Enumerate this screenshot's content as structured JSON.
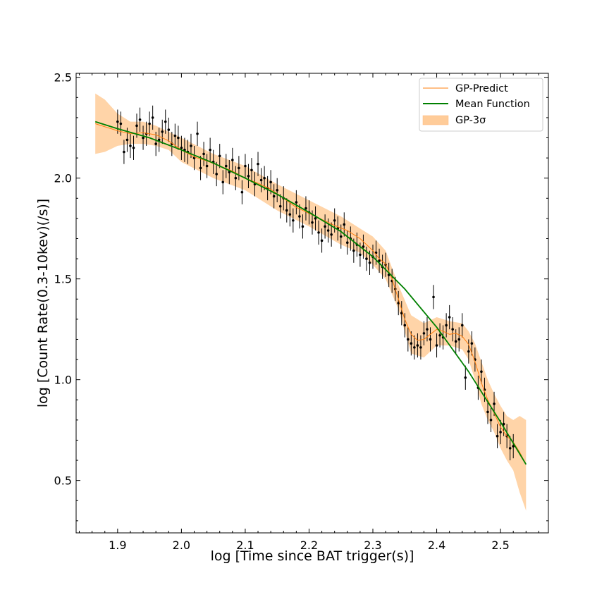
{
  "chart_data": {
    "type": "scatter",
    "title": "",
    "xlabel": "log [Time since BAT trigger(s)]",
    "ylabel": "log [Count Rate(0.3-10kev)(/s)]",
    "xlim": [
      1.835,
      2.575
    ],
    "ylim": [
      0.24,
      2.52
    ],
    "xticks": [
      1.9,
      2.0,
      2.1,
      2.2,
      2.3,
      2.4,
      2.5
    ],
    "xtick_labels": [
      "1.9",
      "2.0",
      "2.1",
      "2.2",
      "2.3",
      "2.4",
      "2.5"
    ],
    "yticks": [
      0.5,
      1.0,
      1.5,
      2.0,
      2.5
    ],
    "ytick_labels": [
      "0.5",
      "1.0",
      "1.5",
      "2.0",
      "2.5"
    ],
    "grid": false,
    "legend_position": "top-right",
    "legend": [
      {
        "label": "GP-Predict",
        "kind": "line",
        "color": "#ff7f0e"
      },
      {
        "label": "Mean Function",
        "kind": "line",
        "color": "#008000"
      },
      {
        "label": "GP-3σ",
        "kind": "band",
        "color": "#ffcc99"
      }
    ],
    "colors": {
      "data": "#000000",
      "gp": "#ff7f0e",
      "mean": "#008000",
      "band": "#ffcc99"
    },
    "mean_function": {
      "x": [
        1.865,
        1.9,
        1.95,
        2.0,
        2.05,
        2.1,
        2.15,
        2.2,
        2.25,
        2.3,
        2.35,
        2.4,
        2.45,
        2.5,
        2.54
      ],
      "y": [
        2.28,
        2.245,
        2.2,
        2.14,
        2.075,
        2.0,
        1.92,
        1.83,
        1.735,
        1.61,
        1.45,
        1.26,
        1.04,
        0.79,
        0.58
      ]
    },
    "gp_predict": {
      "x": [
        1.865,
        1.88,
        1.9,
        1.92,
        1.94,
        1.96,
        1.98,
        2.0,
        2.02,
        2.04,
        2.06,
        2.08,
        2.1,
        2.12,
        2.14,
        2.16,
        2.18,
        2.2,
        2.22,
        2.24,
        2.26,
        2.28,
        2.3,
        2.31,
        2.32,
        2.33,
        2.34,
        2.35,
        2.36,
        2.37,
        2.38,
        2.39,
        2.4,
        2.41,
        2.42,
        2.43,
        2.44,
        2.45,
        2.46,
        2.47,
        2.48,
        2.49,
        2.5,
        2.51,
        2.52,
        2.53,
        2.54
      ],
      "y": [
        2.27,
        2.255,
        2.235,
        2.22,
        2.225,
        2.215,
        2.185,
        2.14,
        2.105,
        2.085,
        2.06,
        2.035,
        2.0,
        1.975,
        1.945,
        1.9,
        1.855,
        1.825,
        1.795,
        1.765,
        1.74,
        1.7,
        1.64,
        1.6,
        1.575,
        1.5,
        1.4,
        1.3,
        1.225,
        1.195,
        1.2,
        1.225,
        1.25,
        1.24,
        1.225,
        1.23,
        1.215,
        1.175,
        1.09,
        0.985,
        0.9,
        0.835,
        0.765,
        0.72,
        0.69,
        0.64,
        0.58
      ]
    },
    "gp_band": {
      "x": [
        1.865,
        1.88,
        1.9,
        1.92,
        1.94,
        1.96,
        1.98,
        2.0,
        2.05,
        2.1,
        2.15,
        2.2,
        2.25,
        2.28,
        2.3,
        2.32,
        2.34,
        2.36,
        2.38,
        2.4,
        2.42,
        2.44,
        2.45,
        2.46,
        2.47,
        2.48,
        2.49,
        2.5,
        2.51,
        2.52,
        2.53,
        2.54
      ],
      "upper": [
        2.42,
        2.39,
        2.32,
        2.28,
        2.28,
        2.26,
        2.23,
        2.2,
        2.12,
        2.06,
        1.97,
        1.89,
        1.81,
        1.75,
        1.71,
        1.64,
        1.47,
        1.32,
        1.28,
        1.31,
        1.29,
        1.28,
        1.24,
        1.18,
        1.09,
        1.0,
        0.93,
        0.87,
        0.82,
        0.8,
        0.82,
        0.8
      ],
      "lower": [
        2.12,
        2.13,
        2.16,
        2.17,
        2.17,
        2.16,
        2.14,
        2.08,
        2.0,
        1.94,
        1.84,
        1.76,
        1.67,
        1.63,
        1.57,
        1.5,
        1.35,
        1.13,
        1.11,
        1.17,
        1.17,
        1.15,
        1.1,
        1.0,
        0.88,
        0.8,
        0.74,
        0.66,
        0.6,
        0.55,
        0.44,
        0.35
      ]
    },
    "observations": {
      "x": [
        1.9,
        1.905,
        1.91,
        1.915,
        1.92,
        1.925,
        1.93,
        1.935,
        1.94,
        1.945,
        1.95,
        1.955,
        1.96,
        1.965,
        1.97,
        1.975,
        1.98,
        1.985,
        1.99,
        1.995,
        2.0,
        2.005,
        2.01,
        2.015,
        2.02,
        2.025,
        2.03,
        2.035,
        2.04,
        2.045,
        2.05,
        2.055,
        2.06,
        2.065,
        2.07,
        2.075,
        2.08,
        2.085,
        2.09,
        2.095,
        2.1,
        2.105,
        2.11,
        2.115,
        2.12,
        2.125,
        2.13,
        2.135,
        2.14,
        2.145,
        2.15,
        2.155,
        2.16,
        2.165,
        2.17,
        2.175,
        2.18,
        2.185,
        2.19,
        2.195,
        2.2,
        2.205,
        2.21,
        2.215,
        2.22,
        2.225,
        2.23,
        2.235,
        2.24,
        2.245,
        2.25,
        2.255,
        2.26,
        2.265,
        2.27,
        2.275,
        2.28,
        2.285,
        2.29,
        2.295,
        2.3,
        2.305,
        2.31,
        2.315,
        2.32,
        2.325,
        2.33,
        2.335,
        2.34,
        2.345,
        2.35,
        2.355,
        2.36,
        2.365,
        2.37,
        2.375,
        2.38,
        2.385,
        2.39,
        2.395,
        2.4,
        2.405,
        2.41,
        2.415,
        2.42,
        2.425,
        2.43,
        2.435,
        2.44,
        2.445,
        2.45,
        2.455,
        2.46,
        2.465,
        2.47,
        2.475,
        2.48,
        2.485,
        2.49,
        2.495,
        2.5,
        2.505,
        2.51,
        2.515,
        2.52
      ],
      "y": [
        2.28,
        2.27,
        2.13,
        2.19,
        2.16,
        2.15,
        2.26,
        2.29,
        2.2,
        2.22,
        2.27,
        2.3,
        2.17,
        2.19,
        2.23,
        2.28,
        2.24,
        2.17,
        2.21,
        2.2,
        2.15,
        2.14,
        2.13,
        2.16,
        2.1,
        2.22,
        2.05,
        2.12,
        2.06,
        2.14,
        2.08,
        2.02,
        2.11,
        1.98,
        2.06,
        2.03,
        2.09,
        2.0,
        2.05,
        1.93,
        2.06,
        2.01,
        2.04,
        1.97,
        2.07,
        1.99,
        2.0,
        1.95,
        1.98,
        1.91,
        1.94,
        1.86,
        1.9,
        1.84,
        1.82,
        1.79,
        1.88,
        1.81,
        1.76,
        1.85,
        1.83,
        1.78,
        1.8,
        1.73,
        1.69,
        1.76,
        1.74,
        1.72,
        1.79,
        1.75,
        1.71,
        1.77,
        1.68,
        1.7,
        1.64,
        1.67,
        1.62,
        1.66,
        1.6,
        1.58,
        1.61,
        1.63,
        1.59,
        1.56,
        1.57,
        1.52,
        1.49,
        1.45,
        1.38,
        1.33,
        1.27,
        1.2,
        1.18,
        1.16,
        1.17,
        1.16,
        1.23,
        1.25,
        1.2,
        1.41,
        1.17,
        1.22,
        1.21,
        1.27,
        1.31,
        1.25,
        1.19,
        1.2,
        1.27,
        1.01,
        1.14,
        1.18,
        1.1,
        0.96,
        1.04,
        0.95,
        0.84,
        0.8,
        0.88,
        0.72,
        0.74,
        0.78,
        0.72,
        0.66,
        0.67
      ],
      "error": 0.06
    }
  }
}
